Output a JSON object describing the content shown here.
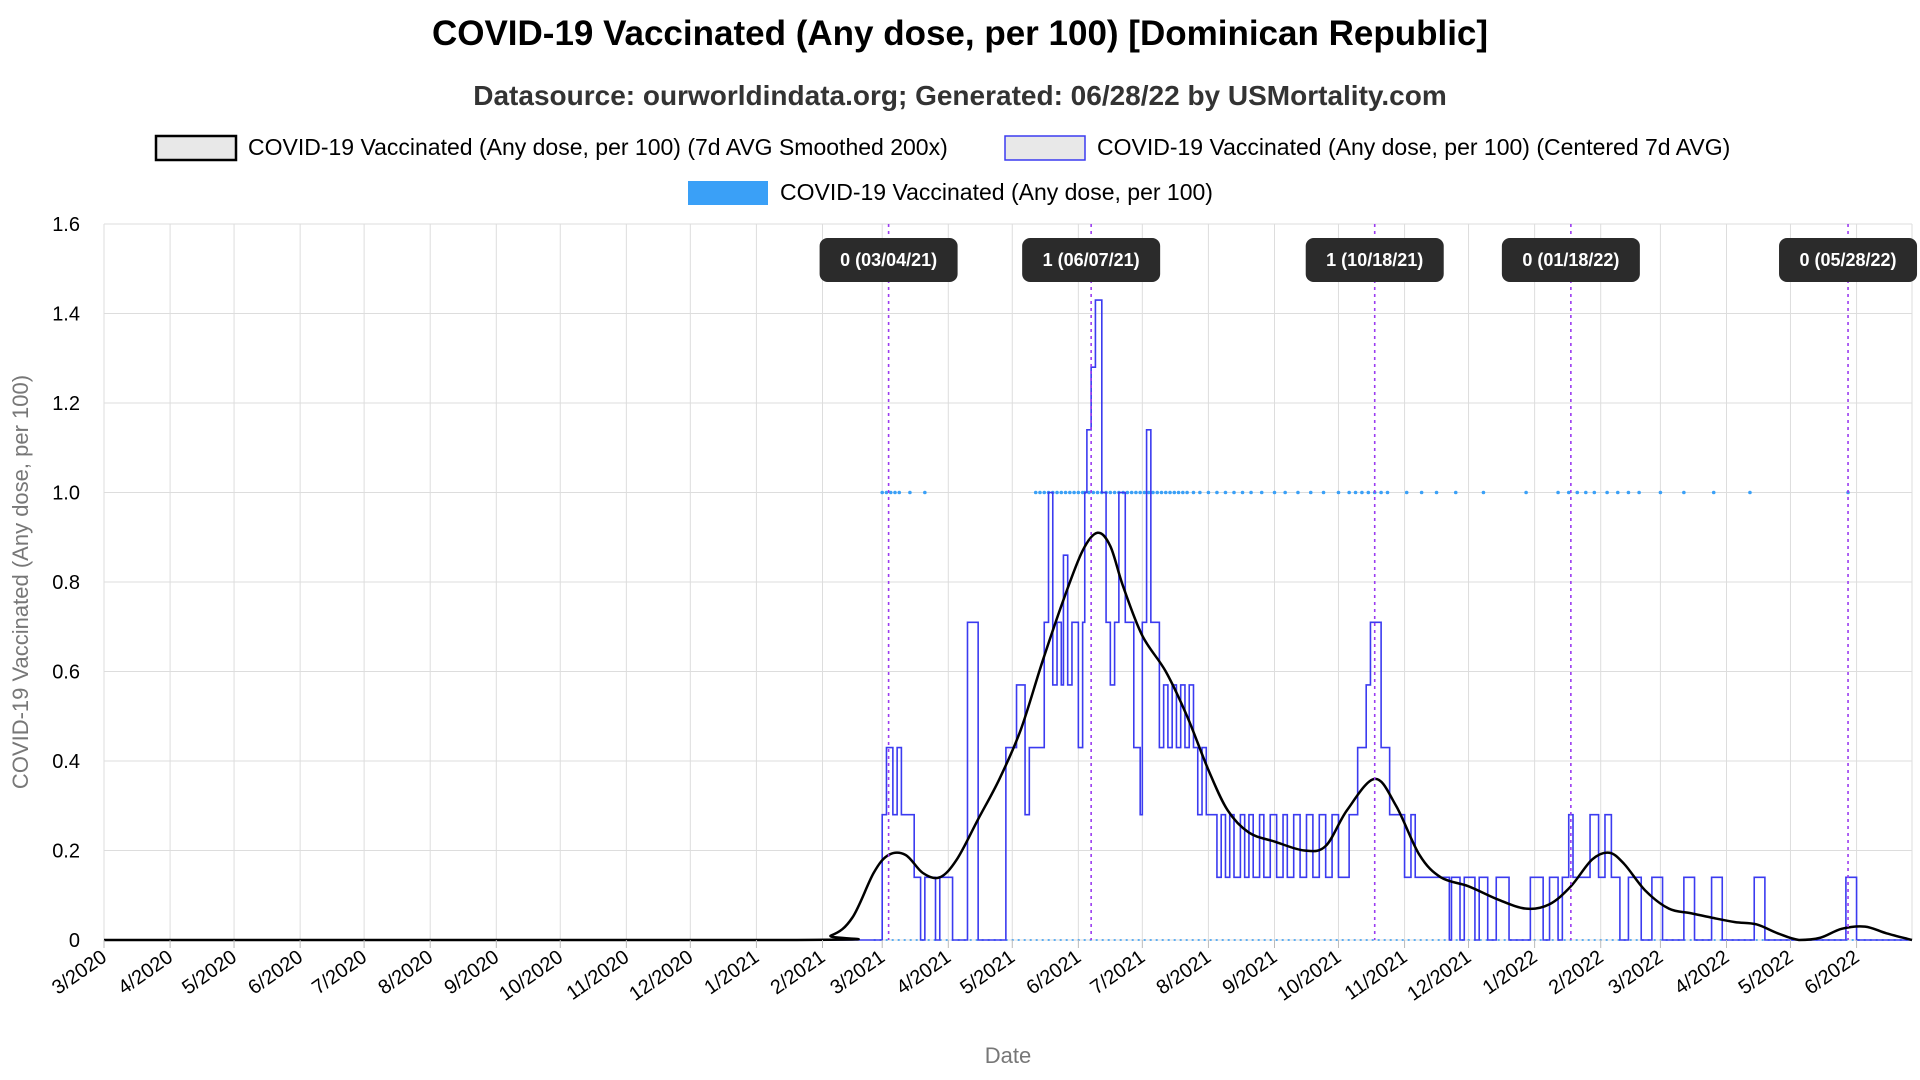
{
  "title": "COVID-19 Vaccinated (Any dose, per 100) [Dominican Republic]",
  "subtitle": "Datasource: ourworldindata.org; Generated: 06/28/22 by USMortality.com",
  "colors": {
    "smoothed": "#000000",
    "centered": "#3b3bf0",
    "raw": "#3aa0f7",
    "annotation_line": "#9b3cf0",
    "annotation_box": "#2b2b2b",
    "grid": "#dddddd"
  },
  "chart_data": {
    "type": "line",
    "xlabel": "Date",
    "ylabel": "COVID-19 Vaccinated (Any dose, per 100)",
    "x_range": [
      "2020-03-01",
      "2022-06-27"
    ],
    "ylim": [
      0,
      1.6
    ],
    "y_ticks": [
      0,
      0.2,
      0.4,
      0.6,
      0.8,
      1.0,
      1.2,
      1.4,
      1.6
    ],
    "y_tick_labels": [
      "0",
      "0.2",
      "0.4",
      "0.6",
      "0.8",
      "1.0",
      "1.2",
      "1.4",
      "1.6"
    ],
    "x_tick_labels": [
      "3/2020",
      "4/2020",
      "5/2020",
      "6/2020",
      "7/2020",
      "8/2020",
      "9/2020",
      "10/2020",
      "11/2020",
      "12/2020",
      "1/2021",
      "2/2021",
      "3/2021",
      "4/2021",
      "5/2021",
      "6/2021",
      "7/2021",
      "8/2021",
      "9/2021",
      "10/2021",
      "11/2021",
      "12/2021",
      "1/2022",
      "2/2022",
      "3/2022",
      "4/2022",
      "5/2022",
      "6/2022"
    ],
    "x_tick_dates": [
      "2020-03-01",
      "2020-04-01",
      "2020-05-01",
      "2020-06-01",
      "2020-07-01",
      "2020-08-01",
      "2020-09-01",
      "2020-10-01",
      "2020-11-01",
      "2020-12-01",
      "2021-01-01",
      "2021-02-01",
      "2021-03-01",
      "2021-04-01",
      "2021-05-01",
      "2021-06-01",
      "2021-07-01",
      "2021-08-01",
      "2021-09-01",
      "2021-10-01",
      "2021-11-01",
      "2021-12-01",
      "2022-01-01",
      "2022-02-01",
      "2022-03-01",
      "2022-04-01",
      "2022-05-01",
      "2022-06-01"
    ],
    "legend_position": "top-center",
    "grid": true,
    "series": [
      {
        "name": "COVID-19 Vaccinated (Any dose, per 100) (7d AVG Smoothed 200x)",
        "style": "line",
        "points": [
          [
            "2020-03-01",
            0
          ],
          [
            "2021-01-20",
            0
          ],
          [
            "2021-02-05",
            0.01
          ],
          [
            "2021-02-15",
            0.05
          ],
          [
            "2021-02-25",
            0.15
          ],
          [
            "2021-03-04",
            0.19
          ],
          [
            "2021-03-12",
            0.19
          ],
          [
            "2021-03-20",
            0.15
          ],
          [
            "2021-03-28",
            0.14
          ],
          [
            "2021-04-05",
            0.18
          ],
          [
            "2021-04-15",
            0.27
          ],
          [
            "2021-04-25",
            0.36
          ],
          [
            "2021-05-05",
            0.47
          ],
          [
            "2021-05-15",
            0.62
          ],
          [
            "2021-05-25",
            0.76
          ],
          [
            "2021-06-03",
            0.87
          ],
          [
            "2021-06-10",
            0.91
          ],
          [
            "2021-06-16",
            0.88
          ],
          [
            "2021-06-22",
            0.79
          ],
          [
            "2021-07-01",
            0.68
          ],
          [
            "2021-07-12",
            0.6
          ],
          [
            "2021-07-22",
            0.5
          ],
          [
            "2021-08-01",
            0.38
          ],
          [
            "2021-08-10",
            0.29
          ],
          [
            "2021-08-20",
            0.24
          ],
          [
            "2021-09-01",
            0.22
          ],
          [
            "2021-09-15",
            0.2
          ],
          [
            "2021-09-25",
            0.21
          ],
          [
            "2021-10-05",
            0.29
          ],
          [
            "2021-10-18",
            0.36
          ],
          [
            "2021-10-28",
            0.3
          ],
          [
            "2021-11-08",
            0.19
          ],
          [
            "2021-11-18",
            0.14
          ],
          [
            "2021-12-01",
            0.12
          ],
          [
            "2021-12-15",
            0.09
          ],
          [
            "2021-12-28",
            0.07
          ],
          [
            "2022-01-08",
            0.08
          ],
          [
            "2022-01-18",
            0.12
          ],
          [
            "2022-01-28",
            0.18
          ],
          [
            "2022-02-05",
            0.195
          ],
          [
            "2022-02-12",
            0.17
          ],
          [
            "2022-02-22",
            0.11
          ],
          [
            "2022-03-05",
            0.07
          ],
          [
            "2022-03-15",
            0.06
          ],
          [
            "2022-03-25",
            0.05
          ],
          [
            "2022-04-05",
            0.04
          ],
          [
            "2022-04-15",
            0.035
          ],
          [
            "2022-04-25",
            0.015
          ],
          [
            "2022-05-05",
            0.0
          ],
          [
            "2022-05-15",
            0.005
          ],
          [
            "2022-05-25",
            0.025
          ],
          [
            "2022-06-05",
            0.03
          ],
          [
            "2022-06-15",
            0.015
          ],
          [
            "2022-06-27",
            0
          ]
        ]
      },
      {
        "name": "COVID-19 Vaccinated (Any dose, per 100) (Centered 7d AVG)",
        "style": "step",
        "points": [
          [
            "2020-03-01",
            0
          ],
          [
            "2021-02-28",
            0
          ],
          [
            "2021-03-01",
            0.28
          ],
          [
            "2021-03-03",
            0.43
          ],
          [
            "2021-03-06",
            0.28
          ],
          [
            "2021-03-08",
            0.43
          ],
          [
            "2021-03-10",
            0.28
          ],
          [
            "2021-03-16",
            0.14
          ],
          [
            "2021-03-19",
            0
          ],
          [
            "2021-03-21",
            0.14
          ],
          [
            "2021-03-26",
            0
          ],
          [
            "2021-03-28",
            0.14
          ],
          [
            "2021-04-03",
            0
          ],
          [
            "2021-04-08",
            0
          ],
          [
            "2021-04-10",
            0.71
          ],
          [
            "2021-04-15",
            0
          ],
          [
            "2021-04-26",
            0
          ],
          [
            "2021-04-28",
            0.43
          ],
          [
            "2021-05-03",
            0.57
          ],
          [
            "2021-05-07",
            0.28
          ],
          [
            "2021-05-09",
            0.43
          ],
          [
            "2021-05-16",
            0.71
          ],
          [
            "2021-05-18",
            1.0
          ],
          [
            "2021-05-20",
            0.57
          ],
          [
            "2021-05-22",
            0.71
          ],
          [
            "2021-05-24",
            0.57
          ],
          [
            "2021-05-25",
            0.86
          ],
          [
            "2021-05-27",
            0.57
          ],
          [
            "2021-05-29",
            0.71
          ],
          [
            "2021-06-01",
            0.43
          ],
          [
            "2021-06-03",
            0.71
          ],
          [
            "2021-06-04",
            1.0
          ],
          [
            "2021-06-05",
            1.14
          ],
          [
            "2021-06-07",
            1.28
          ],
          [
            "2021-06-09",
            1.43
          ],
          [
            "2021-06-12",
            1.0
          ],
          [
            "2021-06-14",
            0.71
          ],
          [
            "2021-06-16",
            0.57
          ],
          [
            "2021-06-18",
            0.71
          ],
          [
            "2021-06-20",
            1.0
          ],
          [
            "2021-06-23",
            0.71
          ],
          [
            "2021-06-27",
            0.43
          ],
          [
            "2021-06-30",
            0.28
          ],
          [
            "2021-07-01",
            0.71
          ],
          [
            "2021-07-03",
            1.14
          ],
          [
            "2021-07-05",
            0.71
          ],
          [
            "2021-07-09",
            0.43
          ],
          [
            "2021-07-11",
            0.57
          ],
          [
            "2021-07-13",
            0.43
          ],
          [
            "2021-07-15",
            0.57
          ],
          [
            "2021-07-17",
            0.43
          ],
          [
            "2021-07-19",
            0.57
          ],
          [
            "2021-07-21",
            0.43
          ],
          [
            "2021-07-23",
            0.57
          ],
          [
            "2021-07-25",
            0.43
          ],
          [
            "2021-07-27",
            0.28
          ],
          [
            "2021-07-29",
            0.43
          ],
          [
            "2021-07-31",
            0.28
          ],
          [
            "2021-08-03",
            0.28
          ],
          [
            "2021-08-05",
            0.14
          ],
          [
            "2021-08-07",
            0.28
          ],
          [
            "2021-08-09",
            0.14
          ],
          [
            "2021-08-11",
            0.28
          ],
          [
            "2021-08-13",
            0.14
          ],
          [
            "2021-08-16",
            0.28
          ],
          [
            "2021-08-18",
            0.14
          ],
          [
            "2021-08-20",
            0.28
          ],
          [
            "2021-08-22",
            0.14
          ],
          [
            "2021-08-25",
            0.28
          ],
          [
            "2021-08-27",
            0.14
          ],
          [
            "2021-08-30",
            0.28
          ],
          [
            "2021-09-02",
            0.14
          ],
          [
            "2021-09-05",
            0.28
          ],
          [
            "2021-09-07",
            0.14
          ],
          [
            "2021-09-10",
            0.28
          ],
          [
            "2021-09-13",
            0.14
          ],
          [
            "2021-09-16",
            0.28
          ],
          [
            "2021-09-19",
            0.14
          ],
          [
            "2021-09-22",
            0.28
          ],
          [
            "2021-09-25",
            0.14
          ],
          [
            "2021-09-28",
            0.28
          ],
          [
            "2021-10-01",
            0.14
          ],
          [
            "2021-10-06",
            0.28
          ],
          [
            "2021-10-10",
            0.43
          ],
          [
            "2021-10-14",
            0.57
          ],
          [
            "2021-10-16",
            0.71
          ],
          [
            "2021-10-21",
            0.43
          ],
          [
            "2021-10-25",
            0.28
          ],
          [
            "2021-11-01",
            0.14
          ],
          [
            "2021-11-04",
            0.28
          ],
          [
            "2021-11-06",
            0.14
          ],
          [
            "2021-11-20",
            0.14
          ],
          [
            "2021-11-22",
            0.0
          ],
          [
            "2021-11-23",
            0.14
          ],
          [
            "2021-11-27",
            0
          ],
          [
            "2021-11-29",
            0.14
          ],
          [
            "2021-12-04",
            0
          ],
          [
            "2021-12-06",
            0.14
          ],
          [
            "2021-12-10",
            0
          ],
          [
            "2021-12-14",
            0.14
          ],
          [
            "2021-12-20",
            0
          ],
          [
            "2021-12-30",
            0.14
          ],
          [
            "2022-01-05",
            0
          ],
          [
            "2022-01-08",
            0.14
          ],
          [
            "2022-01-12",
            0
          ],
          [
            "2022-01-14",
            0.14
          ],
          [
            "2022-01-17",
            0.28
          ],
          [
            "2022-01-19",
            0.14
          ],
          [
            "2022-01-27",
            0.28
          ],
          [
            "2022-01-31",
            0.14
          ],
          [
            "2022-02-03",
            0.28
          ],
          [
            "2022-02-06",
            0.14
          ],
          [
            "2022-02-10",
            0
          ],
          [
            "2022-02-14",
            0.14
          ],
          [
            "2022-02-20",
            0
          ],
          [
            "2022-02-25",
            0.14
          ],
          [
            "2022-03-02",
            0
          ],
          [
            "2022-03-12",
            0.14
          ],
          [
            "2022-03-17",
            0
          ],
          [
            "2022-03-25",
            0.14
          ],
          [
            "2022-03-30",
            0
          ],
          [
            "2022-04-14",
            0.14
          ],
          [
            "2022-04-19",
            0
          ],
          [
            "2022-05-27",
            0.14
          ],
          [
            "2022-06-01",
            0
          ],
          [
            "2022-06-27",
            0
          ]
        ]
      },
      {
        "name": "COVID-19 Vaccinated (Any dose, per 100)",
        "style": "points",
        "x_ones": [
          "2021-03-01",
          "2021-03-03",
          "2021-03-05",
          "2021-03-07",
          "2021-03-09",
          "2021-03-14",
          "2021-03-21",
          "2021-05-12",
          "2021-05-14",
          "2021-05-16",
          "2021-05-18",
          "2021-05-20",
          "2021-05-22",
          "2021-05-24",
          "2021-05-26",
          "2021-05-28",
          "2021-05-30",
          "2021-06-01",
          "2021-06-03",
          "2021-06-04",
          "2021-06-06",
          "2021-06-08",
          "2021-06-10",
          "2021-06-12",
          "2021-06-14",
          "2021-06-16",
          "2021-06-18",
          "2021-06-20",
          "2021-06-22",
          "2021-06-24",
          "2021-06-26",
          "2021-06-28",
          "2021-06-30",
          "2021-07-02",
          "2021-07-04",
          "2021-07-06",
          "2021-07-08",
          "2021-07-10",
          "2021-07-12",
          "2021-07-14",
          "2021-07-16",
          "2021-07-18",
          "2021-07-20",
          "2021-07-22",
          "2021-07-25",
          "2021-07-28",
          "2021-08-01",
          "2021-08-05",
          "2021-08-09",
          "2021-08-13",
          "2021-08-17",
          "2021-08-21",
          "2021-08-26",
          "2021-09-01",
          "2021-09-06",
          "2021-09-12",
          "2021-09-18",
          "2021-09-24",
          "2021-10-01",
          "2021-10-06",
          "2021-10-09",
          "2021-10-12",
          "2021-10-15",
          "2021-10-18",
          "2021-10-21",
          "2021-10-24",
          "2021-11-02",
          "2021-11-09",
          "2021-11-16",
          "2021-11-25",
          "2021-12-08",
          "2021-12-28",
          "2022-01-12",
          "2022-01-17",
          "2022-01-21",
          "2022-01-25",
          "2022-01-29",
          "2022-02-04",
          "2022-02-09",
          "2022-02-14",
          "2022-02-19",
          "2022-03-01",
          "2022-03-12",
          "2022-03-26",
          "2022-04-12",
          "2022-05-28"
        ],
        "other_values": 0
      }
    ],
    "annotations": [
      {
        "date": "2021-03-04",
        "label": "0 (03/04/21)"
      },
      {
        "date": "2021-06-07",
        "label": "1 (06/07/21)"
      },
      {
        "date": "2021-10-18",
        "label": "1 (10/18/21)"
      },
      {
        "date": "2022-01-18",
        "label": "0 (01/18/22)"
      },
      {
        "date": "2022-05-28",
        "label": "0 (05/28/22)"
      }
    ]
  }
}
